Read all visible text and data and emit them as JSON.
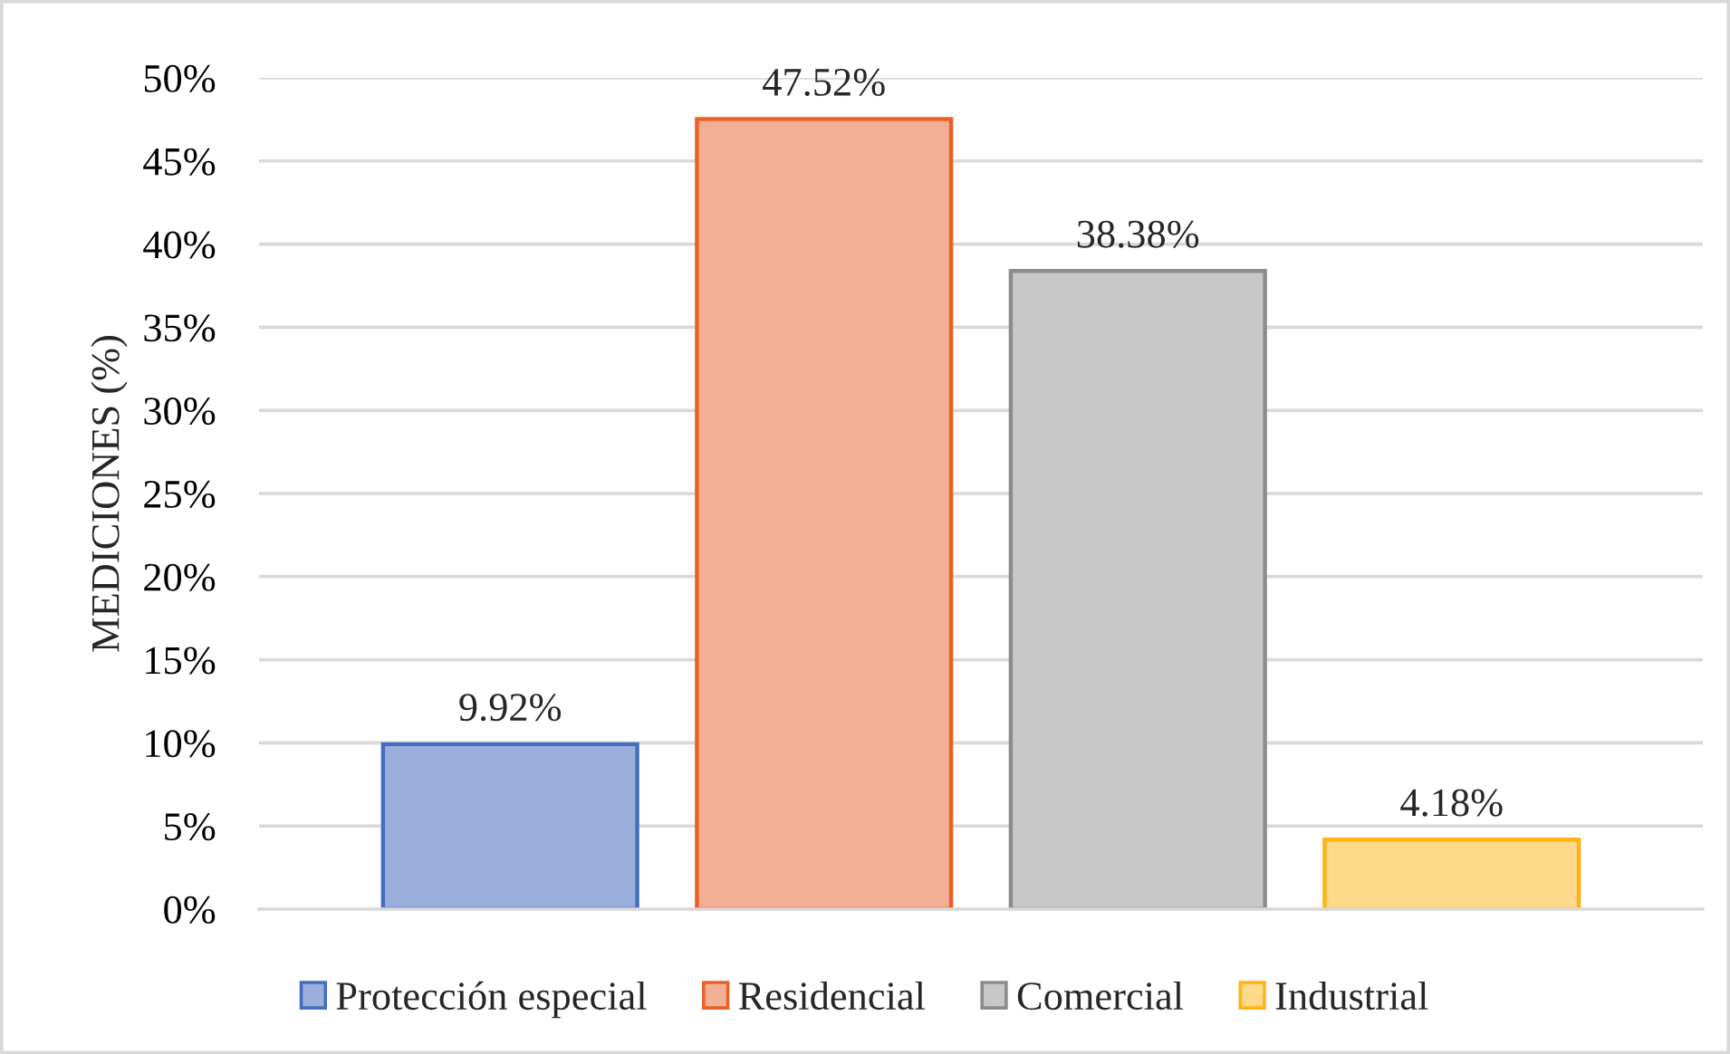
{
  "chart_data": {
    "type": "bar",
    "ylabel": "MEDICIONES (%)",
    "categories": [
      null,
      null,
      null,
      null
    ],
    "series": [
      {
        "name": "Protección especial",
        "color": "#9aafdc",
        "values": [
          9.92,
          null,
          null,
          null
        ],
        "value_labels": [
          "9.92%",
          null,
          null,
          null
        ]
      },
      {
        "name": "Residencial",
        "color": "#f4b094",
        "values": [
          null,
          47.52,
          null,
          null
        ],
        "value_labels": [
          null,
          "47.52%",
          null,
          null
        ]
      },
      {
        "name": "Comercial",
        "color": "#c8c8c8",
        "values": [
          null,
          null,
          38.38,
          null
        ],
        "value_labels": [
          null,
          null,
          "38.38%",
          null
        ]
      },
      {
        "name": "Industrial",
        "color": "#ffd98a",
        "values": [
          null,
          null,
          null,
          4.18
        ],
        "value_labels": [
          null,
          null,
          null,
          "4.18%"
        ]
      }
    ],
    "ylim": [
      0,
      50
    ],
    "yticks": [
      {
        "value": 0,
        "label": "0%"
      },
      {
        "value": 5,
        "label": "5%"
      },
      {
        "value": 10,
        "label": "10%"
      },
      {
        "value": 15,
        "label": "15%"
      },
      {
        "value": 20,
        "label": "20%"
      },
      {
        "value": 25,
        "label": "25%"
      },
      {
        "value": 30,
        "label": "30%"
      },
      {
        "value": 35,
        "label": "35%"
      },
      {
        "value": 40,
        "label": "40%"
      },
      {
        "value": 45,
        "label": "45%"
      },
      {
        "value": 50,
        "label": "50%"
      }
    ],
    "grid": "y",
    "legend": "bottom",
    "tick_labels": "y"
  }
}
